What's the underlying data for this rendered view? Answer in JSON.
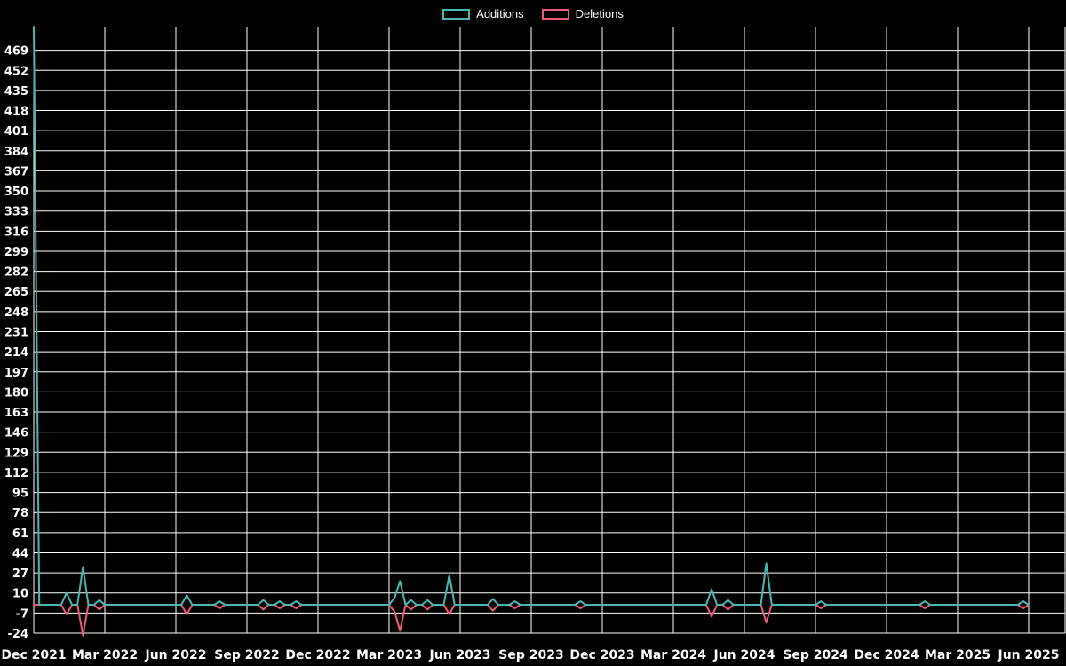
{
  "legend": {
    "items": [
      {
        "label": "Additions",
        "color": "#4ab8b2"
      },
      {
        "label": "Deletions",
        "color": "#ef5b74"
      }
    ]
  },
  "chart_data": {
    "type": "line",
    "title": "",
    "background": "#000000",
    "grid_color": "#ffffff",
    "text_color": "#ffffff",
    "grid": true,
    "legend_position": "top-center",
    "x_tick_labels": [
      "Dec 2021",
      "Mar 2022",
      "Jun 2022",
      "Sep 2022",
      "Dec 2022",
      "Mar 2023",
      "Jun 2023",
      "Sep 2023",
      "Dec 2023",
      "Mar 2024",
      "Jun 2024",
      "Sep 2024",
      "Dec 2024",
      "Mar 2025",
      "Jun 2025"
    ],
    "weeks_per_tick": 13,
    "total_weeks": 183,
    "y_tick_values": [
      469,
      452,
      435,
      418,
      401,
      384,
      367,
      350,
      333,
      316,
      299,
      282,
      265,
      248,
      231,
      214,
      197,
      180,
      163,
      146,
      129,
      112,
      95,
      78,
      61,
      44,
      27,
      10,
      -7,
      -24
    ],
    "ylim": [
      -24,
      489
    ],
    "series": [
      {
        "name": "Additions",
        "color": "#4ab8b2",
        "default_value": 0,
        "sparse_points": [
          [
            0,
            489
          ],
          [
            6,
            10
          ],
          [
            9,
            32
          ],
          [
            12,
            4
          ],
          [
            28,
            8
          ],
          [
            34,
            3
          ],
          [
            42,
            4
          ],
          [
            45,
            3
          ],
          [
            48,
            3
          ],
          [
            66,
            6
          ],
          [
            67,
            20
          ],
          [
            69,
            4
          ],
          [
            72,
            4
          ],
          [
            76,
            25
          ],
          [
            84,
            5
          ],
          [
            88,
            3
          ],
          [
            100,
            3
          ],
          [
            124,
            13
          ],
          [
            127,
            4
          ],
          [
            134,
            35
          ],
          [
            144,
            3
          ],
          [
            163,
            3
          ],
          [
            181,
            3
          ]
        ]
      },
      {
        "name": "Deletions",
        "color": "#ef5b74",
        "default_value": 0,
        "sparse_points": [
          [
            6,
            -8
          ],
          [
            9,
            -26
          ],
          [
            12,
            -4
          ],
          [
            28,
            -8
          ],
          [
            34,
            -3
          ],
          [
            42,
            -4
          ],
          [
            45,
            -3
          ],
          [
            48,
            -3
          ],
          [
            66,
            -6
          ],
          [
            67,
            -22
          ],
          [
            69,
            -4
          ],
          [
            72,
            -4
          ],
          [
            76,
            -8
          ],
          [
            84,
            -5
          ],
          [
            88,
            -3
          ],
          [
            100,
            -3
          ],
          [
            124,
            -10
          ],
          [
            127,
            -4
          ],
          [
            134,
            -15
          ],
          [
            144,
            -3
          ],
          [
            163,
            -3
          ],
          [
            181,
            -3
          ]
        ]
      }
    ]
  }
}
